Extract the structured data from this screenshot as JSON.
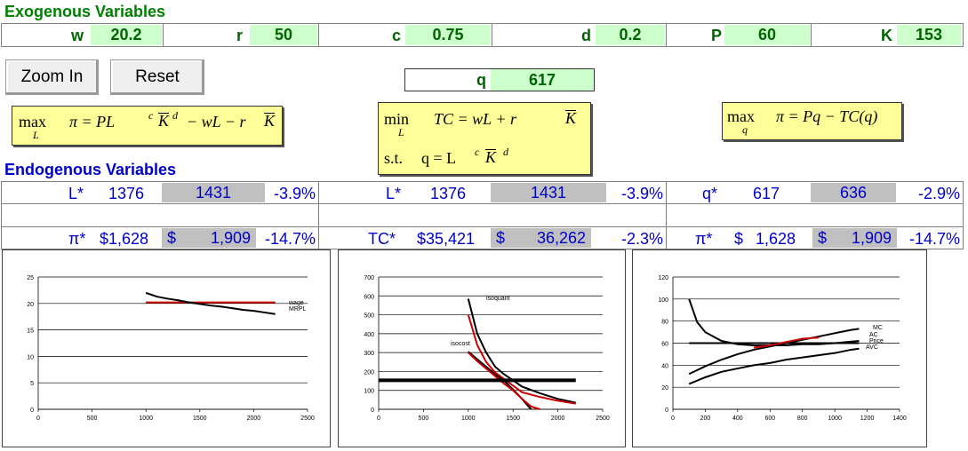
{
  "exogenous": {
    "title": "Exogenous Variables",
    "items": [
      {
        "label": "w",
        "value": "20.2"
      },
      {
        "label": "r",
        "value": "50"
      },
      {
        "label": "c",
        "value": "0.75"
      },
      {
        "label": "d",
        "value": "0.2"
      },
      {
        "label": "P",
        "value": "60"
      },
      {
        "label": "K",
        "value": "153"
      }
    ]
  },
  "buttons": {
    "zoom_in": "Zoom In",
    "reset": "Reset"
  },
  "q_field": {
    "label": "q",
    "value": "617"
  },
  "formulas": {
    "profit_max": {
      "max": "max",
      "sub": "L",
      "body": "π = PL",
      "c": "c",
      "k": "K",
      "d": "d",
      "rest": "− wL − r",
      "k2": "K"
    },
    "cost_min": {
      "min": "min",
      "sub": "L",
      "body": "TC = wL + r",
      "k": "K",
      "st": "s.t.",
      "constraint": "q = L",
      "c": "c",
      "k2": "K",
      "d": "d"
    },
    "q_max": {
      "max": "max",
      "sub": "q",
      "body": "π = Pq − TC(q)"
    }
  },
  "endogenous": {
    "title": "Endogenous Variables",
    "row1": [
      {
        "label": "L*",
        "value": "1376",
        "alt": "1431",
        "pct": "-3.9%"
      },
      {
        "label": "L*",
        "value": "1376",
        "alt": "1431",
        "pct": "-3.9%"
      },
      {
        "label": "q*",
        "value": "617",
        "alt": "636",
        "pct": "-2.9%"
      }
    ],
    "row2": [
      {
        "label": "π*",
        "value": "$1,628",
        "alt_sign": "$",
        "alt": "1,909",
        "pct": "-14.7%"
      },
      {
        "label": "TC*",
        "value": "$35,421",
        "alt_sign": "$",
        "alt": "36,262",
        "pct": "-2.3%"
      },
      {
        "label": "π*",
        "value_sign": "$",
        "value": "1,628",
        "alt_sign": "$",
        "alt": "1,909",
        "pct": "-14.7%"
      }
    ]
  },
  "colors": {
    "green_fill": "#ccffcc",
    "green_text": "#006400",
    "grey_fill": "#c0c0c0",
    "blue": "#0000cc",
    "yellow": "#ffff99",
    "red": "#cc0000"
  },
  "chart_data": [
    {
      "type": "line",
      "xlim": [
        0,
        2500
      ],
      "ylim": [
        0,
        25
      ],
      "xticks": [
        0,
        500,
        1000,
        1500,
        2000,
        2500
      ],
      "yticks": [
        0,
        5,
        10,
        15,
        20,
        25
      ],
      "grid": "horizontal",
      "series": [
        {
          "name": "wage",
          "color": "#cc0000",
          "x": [
            1000,
            2200
          ],
          "y": [
            20.2,
            20.2
          ]
        },
        {
          "name": "MRPL",
          "color": "#000000",
          "x": [
            1000,
            1100,
            1200,
            1300,
            1400,
            1500,
            1600,
            1700,
            1800,
            1900,
            2000,
            2100,
            2200
          ],
          "y": [
            22.0,
            21.3,
            20.9,
            20.6,
            20.2,
            19.9,
            19.6,
            19.4,
            19.1,
            18.8,
            18.6,
            18.3,
            18.0
          ]
        }
      ]
    },
    {
      "type": "line",
      "xlim": [
        0,
        2500
      ],
      "ylim": [
        0,
        700
      ],
      "xticks": [
        0,
        500,
        1000,
        1500,
        2000,
        2500
      ],
      "yticks": [
        0,
        100,
        200,
        300,
        400,
        500,
        600,
        700
      ],
      "grid": "horizontal",
      "annotations": [
        "isoquant",
        "isocost"
      ],
      "series": [
        {
          "name": "isoquant",
          "color": "#000000",
          "x": [
            1000,
            1100,
            1200,
            1300,
            1400,
            1500,
            1600,
            1800,
            2000,
            2200
          ],
          "y": [
            585,
            400,
            300,
            225,
            185,
            153,
            120,
            85,
            55,
            35
          ]
        },
        {
          "name": "isocost",
          "color": "#000000",
          "x": [
            1000,
            1100,
            1200,
            1300,
            1400,
            1500,
            1600,
            1700
          ],
          "y": [
            305,
            265,
            225,
            185,
            150,
            105,
            55,
            0
          ]
        },
        {
          "name": "",
          "color": "#cc0000",
          "x": [
            1000,
            1100,
            1200,
            1300,
            1400,
            1500,
            1600,
            1800,
            2000,
            2200
          ],
          "y": [
            500,
            340,
            250,
            195,
            160,
            125,
            90,
            65,
            45,
            30
          ]
        },
        {
          "name": "",
          "color": "#cc0000",
          "x": [
            1000,
            1100,
            1200,
            1300,
            1400,
            1500,
            1600,
            1700,
            1800
          ],
          "y": [
            300,
            255,
            215,
            175,
            135,
            100,
            55,
            15,
            0
          ]
        },
        {
          "name": "",
          "color": "#000000",
          "width": 4,
          "x": [
            0,
            2200
          ],
          "y": [
            153,
            153
          ]
        }
      ]
    },
    {
      "type": "line",
      "xlim": [
        0,
        1400
      ],
      "ylim": [
        0,
        120
      ],
      "xticks": [
        0,
        200,
        400,
        600,
        800,
        1000,
        1200,
        1400
      ],
      "yticks": [
        0,
        20,
        40,
        60,
        80,
        100,
        120
      ],
      "grid": "horizontal",
      "series": [
        {
          "name": "MC",
          "color": "#000000",
          "x": [
            100,
            200,
            300,
            400,
            500,
            600,
            700,
            800,
            900,
            1000,
            1100,
            1150
          ],
          "y": [
            32,
            39,
            45,
            50,
            54,
            57,
            60,
            63,
            66,
            69,
            72,
            73
          ]
        },
        {
          "name": "AC",
          "color": "#000000",
          "x": [
            100,
            150,
            200,
            300,
            400,
            500,
            600,
            700,
            800,
            900,
            1000,
            1150
          ],
          "y": [
            100,
            79,
            70,
            62,
            59,
            58,
            58,
            58,
            59,
            59,
            60,
            62
          ]
        },
        {
          "name": "Price",
          "color": "#000000",
          "x": [
            100,
            1150
          ],
          "y": [
            60,
            60
          ]
        },
        {
          "name": "AVC",
          "color": "#000000",
          "x": [
            100,
            200,
            300,
            400,
            500,
            600,
            700,
            800,
            900,
            1000,
            1100,
            1150
          ],
          "y": [
            23,
            29,
            34,
            37,
            40,
            42,
            45,
            47,
            49,
            51,
            54,
            55
          ]
        },
        {
          "name": "",
          "color": "#cc0000",
          "x": [
            500,
            600,
            700,
            800,
            900
          ],
          "y": [
            56,
            58,
            61,
            64,
            65
          ]
        }
      ]
    }
  ]
}
